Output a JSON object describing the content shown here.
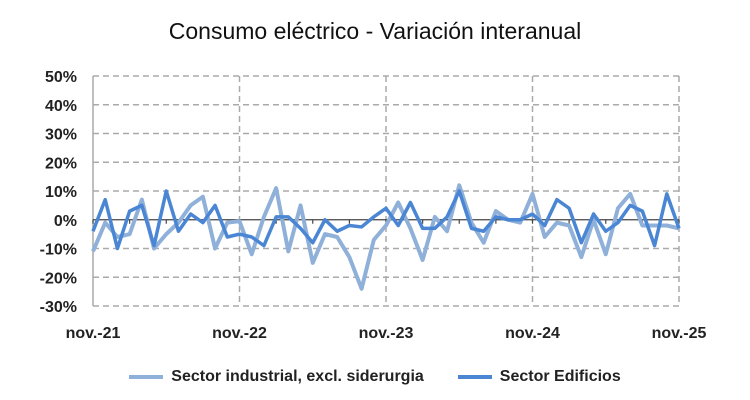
{
  "chart_data": {
    "type": "line",
    "title": "Consumo eléctrico -  Variación interanual",
    "xlabel": "",
    "ylabel": "",
    "ylim": [
      -30,
      50
    ],
    "y_ticks": [
      "50%",
      "40%",
      "30%",
      "20%",
      "10%",
      "0%",
      "-10%",
      "-20%",
      "-30%"
    ],
    "x_ticks": [
      "nov.-21",
      "nov.-22",
      "nov.-23",
      "nov.-24",
      "nov.-25"
    ],
    "grid": true,
    "legend": "bottom",
    "x_start": "nov.-21",
    "x_end": "nov.-25",
    "series": [
      {
        "name": "Sector industrial, excl. siderurgia",
        "color": "#8fb0d9",
        "values": [
          -11,
          -1,
          -6,
          -5,
          7,
          -10,
          -5,
          -1,
          5,
          8,
          -10,
          -1,
          -0.5,
          -12,
          1,
          11,
          -11,
          5,
          -15,
          -5,
          -6,
          -13,
          -24,
          -7,
          -2,
          6,
          -3,
          -14,
          1,
          -4,
          12,
          -1,
          -8,
          3,
          0,
          -1,
          9,
          -6,
          -1,
          -2,
          -13,
          0,
          -12,
          4,
          9,
          -2,
          -2,
          -2,
          -3
        ]
      },
      {
        "name": "Sector Edificios",
        "color": "#4a86d4",
        "values": [
          -4,
          7,
          -10,
          3,
          5,
          -9,
          10,
          -4,
          2,
          -1,
          5,
          -6,
          -5,
          -6,
          -9,
          1,
          1,
          -3,
          -8,
          0,
          -4,
          -2,
          -2.5,
          1,
          4,
          -2,
          6,
          -3,
          -3,
          1,
          10,
          -3,
          -4,
          1,
          0,
          0,
          2,
          -2,
          7,
          4,
          -8,
          2,
          -4,
          -1,
          5,
          3,
          -9,
          9,
          -3
        ]
      }
    ]
  }
}
